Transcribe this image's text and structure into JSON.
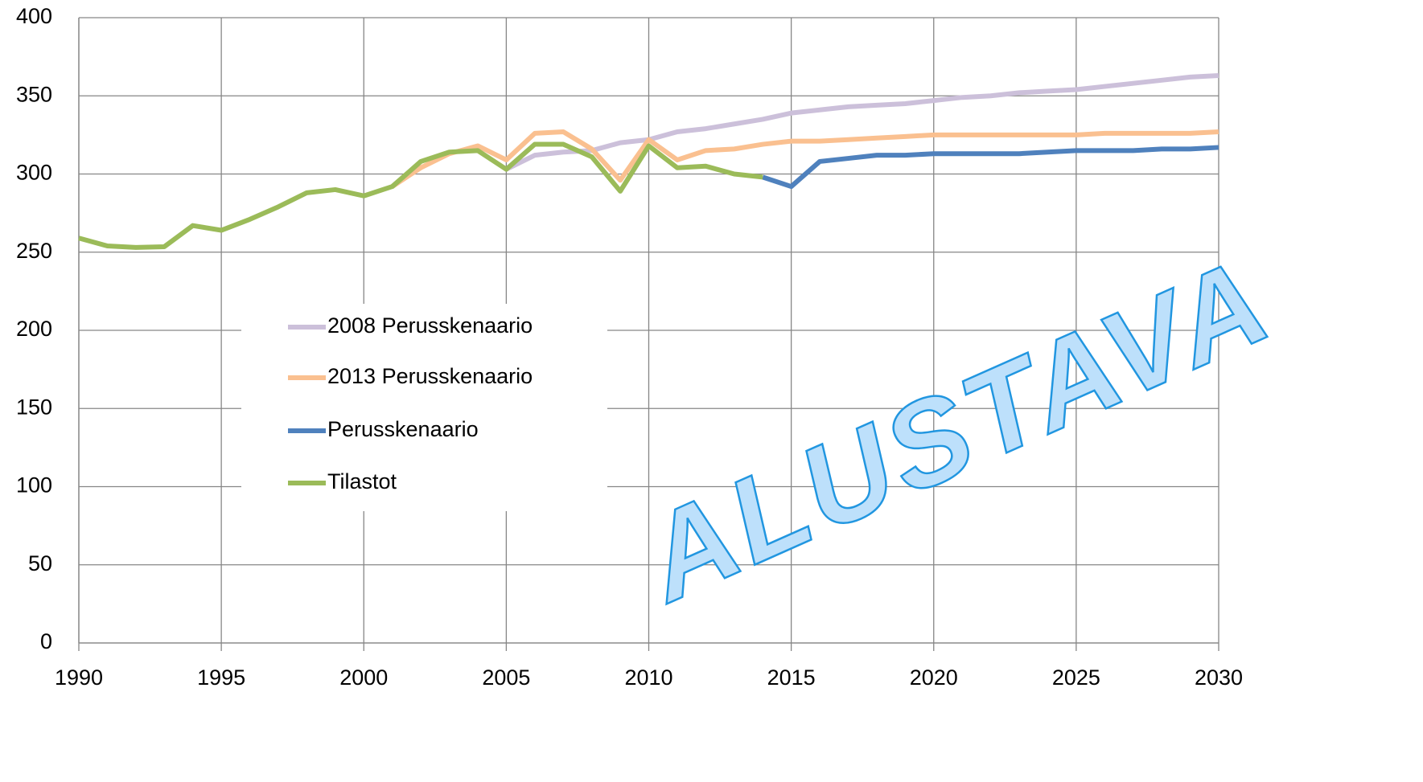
{
  "chart_data": {
    "type": "line",
    "x": [
      1990,
      1991,
      1992,
      1993,
      1994,
      1995,
      1996,
      1997,
      1998,
      1999,
      2000,
      2001,
      2002,
      2003,
      2004,
      2005,
      2006,
      2007,
      2008,
      2009,
      2010,
      2011,
      2012,
      2013,
      2014,
      2015,
      2016,
      2017,
      2018,
      2019,
      2020,
      2021,
      2022,
      2023,
      2024,
      2025,
      2026,
      2027,
      2028,
      2029,
      2030
    ],
    "series": [
      {
        "name": "2008 Perusskenaario",
        "color": "#ccc0da",
        "values": [
          null,
          null,
          null,
          null,
          null,
          null,
          null,
          null,
          null,
          null,
          null,
          null,
          null,
          null,
          null,
          303,
          312,
          314,
          315,
          320,
          322,
          327,
          329,
          332,
          335,
          339,
          341,
          343,
          344,
          345,
          347,
          349,
          350,
          352,
          353,
          354,
          356,
          358,
          360,
          362,
          363
        ]
      },
      {
        "name": "2013 Perusskenaario",
        "color": "#fac090",
        "values": [
          null,
          null,
          null,
          null,
          null,
          null,
          null,
          null,
          null,
          null,
          null,
          292,
          304,
          313,
          318,
          309,
          326,
          327,
          316,
          296,
          322,
          309,
          315,
          316,
          319,
          321,
          321,
          322,
          323,
          324,
          325,
          325,
          325,
          325,
          325,
          325,
          326,
          326,
          326,
          326,
          327
        ]
      },
      {
        "name": "Perusskenaario",
        "color": "#4f81bd",
        "values": [
          null,
          null,
          null,
          null,
          null,
          null,
          null,
          null,
          null,
          null,
          null,
          null,
          null,
          null,
          null,
          null,
          null,
          null,
          null,
          null,
          null,
          null,
          null,
          null,
          298,
          292,
          308,
          310,
          312,
          312,
          313,
          313,
          313,
          313,
          314,
          315,
          315,
          315,
          316,
          316,
          317
        ]
      },
      {
        "name": "Tilastot",
        "color": "#9bbb59",
        "values": [
          259,
          254,
          253,
          253.5,
          267,
          264,
          271,
          279,
          288,
          290,
          286,
          292,
          308,
          314,
          315,
          303,
          319,
          319,
          311,
          289,
          318,
          304,
          305,
          300,
          298,
          null,
          null,
          null,
          null,
          null,
          null,
          null,
          null,
          null,
          null,
          null,
          null,
          null,
          null,
          null,
          null
        ]
      }
    ],
    "xlim": [
      1990,
      2030
    ],
    "xticks": [
      1990,
      1995,
      2000,
      2005,
      2010,
      2015,
      2020,
      2025,
      2030
    ],
    "ylim": [
      0,
      400
    ],
    "yticks": [
      0,
      50,
      100,
      150,
      200,
      250,
      300,
      350,
      400
    ],
    "grid": true,
    "watermark": "ALUSTAVA"
  }
}
